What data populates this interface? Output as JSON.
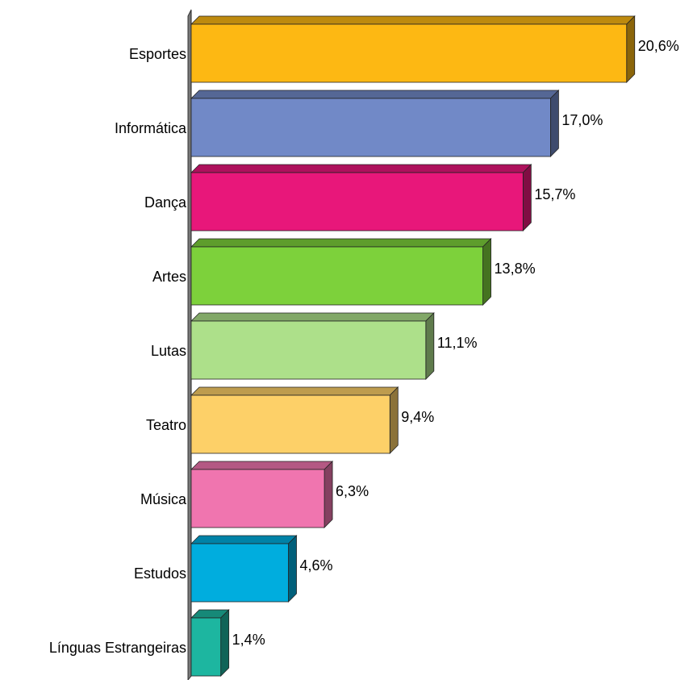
{
  "chart_data": {
    "type": "bar3d_horizontal",
    "categories": [
      "Esportes",
      "Informática",
      "Dança",
      "Artes",
      "Lutas",
      "Teatro",
      "Música",
      "Estudos",
      "Línguas Estrangeiras"
    ],
    "values": [
      20.6,
      17.0,
      15.7,
      13.8,
      11.1,
      9.4,
      6.3,
      4.6,
      1.4
    ],
    "value_labels": [
      "20,6%",
      "17,0%",
      "15,7%",
      "13,8%",
      "11,1%",
      "9,4%",
      "6,3%",
      "4,6%",
      "1,4%"
    ],
    "colors": [
      "#FDB813",
      "#7189C7",
      "#E8177A",
      "#7DD13B",
      "#ADE08A",
      "#FDD068",
      "#F075AF",
      "#00ADDE",
      "#1DB6A0"
    ]
  }
}
